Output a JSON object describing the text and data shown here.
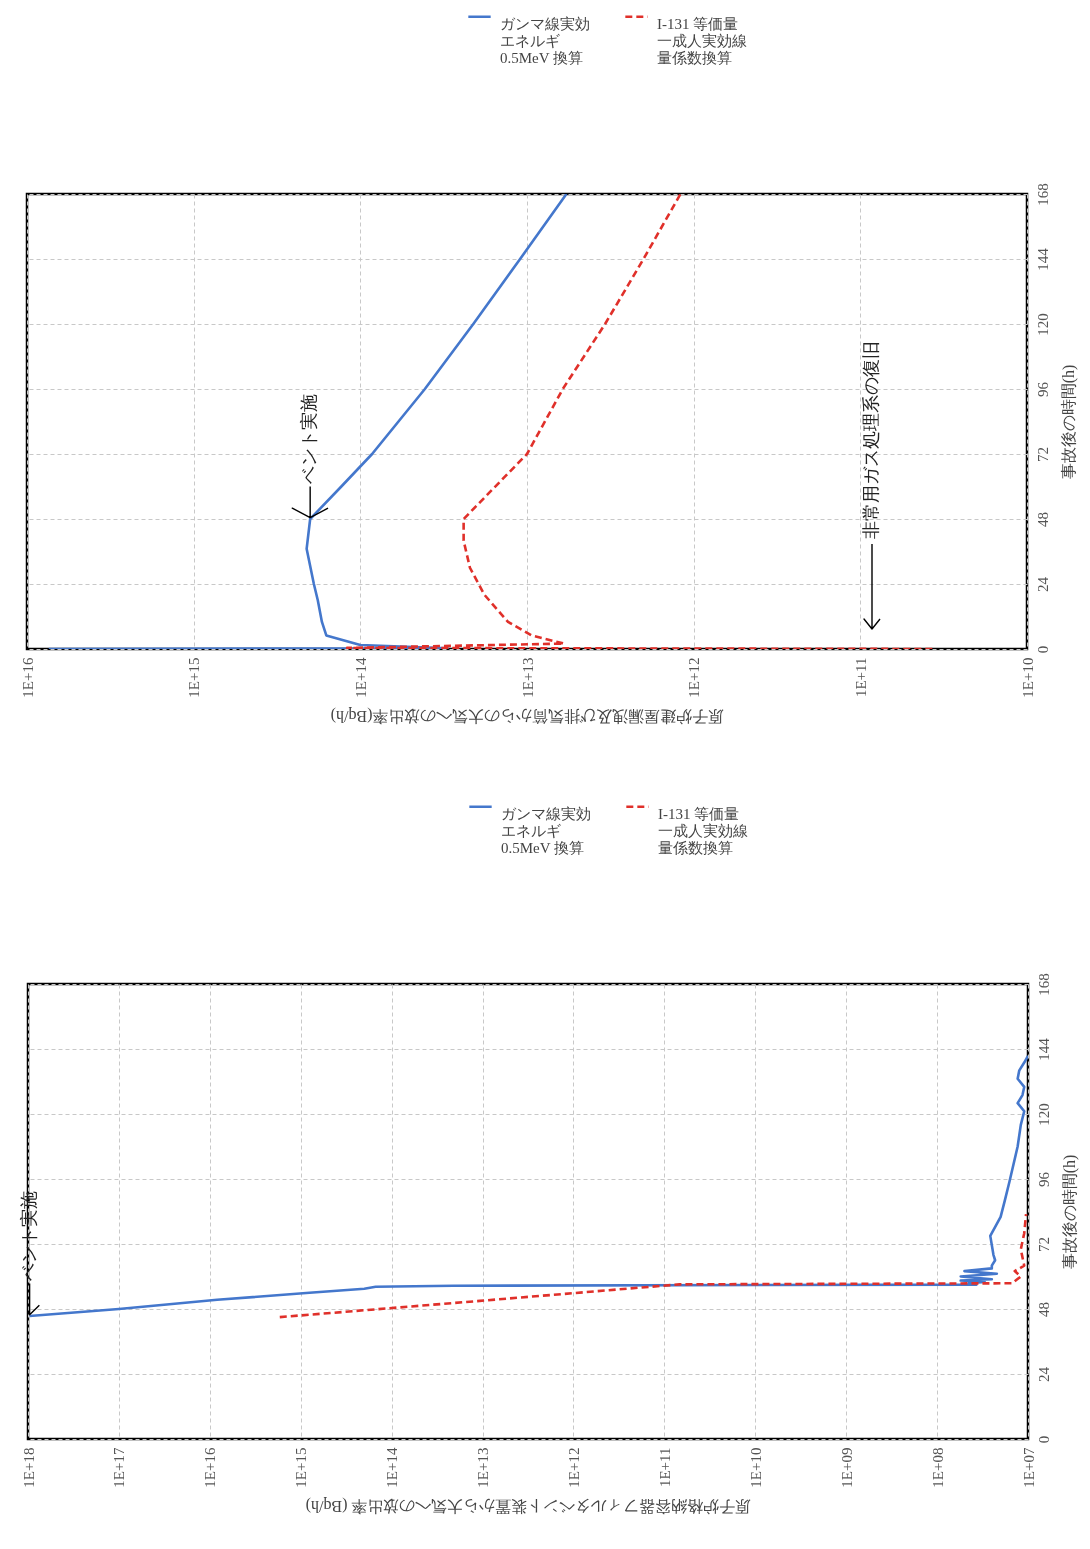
{
  "chart_data": [
    {
      "type": "line",
      "xlabel": "原子炉建屋漏洩及び排気筒からの大気への放出率(Bq/h)",
      "ylabel": "事故後の時間(h)",
      "ylim": [
        0,
        168
      ],
      "yticks": [
        0,
        24,
        48,
        72,
        96,
        120,
        144,
        168
      ],
      "xlim": [
        1e+16,
        10000000000.0
      ],
      "log": "x",
      "grid": true,
      "legend": "top",
      "xticks": [
        {
          "value": 1e+16,
          "label": "1E+16"
        },
        {
          "value": 1000000000000000.0,
          "label": "1E+15"
        },
        {
          "value": 100000000000000.0,
          "label": "1E+14"
        },
        {
          "value": 10000000000000.0,
          "label": "1E+13"
        },
        {
          "value": 1000000000000.0,
          "label": "1E+12"
        },
        {
          "value": 100000000000.0,
          "label": "1E+11"
        },
        {
          "value": 10000000000.0,
          "label": "1E+10"
        }
      ],
      "annotations": [
        {
          "text": "ベント実施",
          "x": 200000000000000.0,
          "y": 48
        },
        "非常用ガス処理系の復旧"
      ],
      "series": [
        {
          "name": "ガンマ線実効エネルギ0.5MeV 換算",
          "color": "#4477cc",
          "line_style": "solid",
          "x": [
            7400000000000000.0,
            30000000000000.0,
            100000000000000.0,
            160000000000000.0,
            170000000000000.0,
            180000000000000.0,
            190000000000000.0,
            210000000000000.0,
            200000000000000.0,
            130000000000000.0,
            85000000000000.0,
            41000000000000.0,
            21000000000000.0,
            11000000000000.0,
            5800000000000.0
          ],
          "values": [
            0,
            0.3,
            1.5,
            5,
            10,
            18,
            24,
            37,
            48,
            60,
            72,
            96,
            120,
            144,
            168
          ]
        },
        {
          "name": "I-131 等価量一成人実効線量係数換算",
          "color": "#e0302a",
          "line_style": "dashed",
          "x": [
            37000000000.0,
            120000000000000.0,
            6000000000000.0,
            9400000000000.0,
            13000000000000.0,
            18000000000000.0,
            22000000000000.0,
            24000000000000.0,
            24000000000000.0,
            10000000000000.0,
            6100000000000.0,
            3400000000000.0,
            2000000000000.0,
            1200000000000.0
          ],
          "values": [
            0,
            0.4,
            2,
            5,
            10,
            20,
            30,
            40,
            48,
            72,
            96,
            120,
            144,
            168
          ]
        }
      ]
    },
    {
      "type": "line",
      "xlabel": "原子炉格納容器フィルタベント装置から大気への放出率 (Bq/h)",
      "ylabel": "事故後の時間(h)",
      "ylim": [
        0,
        168
      ],
      "yticks": [
        0,
        24,
        48,
        72,
        96,
        120,
        144,
        168
      ],
      "xlim": [
        1e+18,
        10000000.0
      ],
      "log": "x",
      "grid": true,
      "legend": "top",
      "xticks": [
        {
          "value": 1e+18,
          "label": "1E+18"
        },
        {
          "value": 1e+17,
          "label": "1E+17"
        },
        {
          "value": 1e+16,
          "label": "1E+16"
        },
        {
          "value": 1000000000000000.0,
          "label": "1E+15"
        },
        {
          "value": 100000000000000.0,
          "label": "1E+14"
        },
        {
          "value": 10000000000000.0,
          "label": "1E+13"
        },
        {
          "value": 1000000000000.0,
          "label": "1E+12"
        },
        {
          "value": 100000000000.0,
          "label": "1E+11"
        },
        {
          "value": 10000000000.0,
          "label": "1E+10"
        },
        {
          "value": 1000000000.0,
          "label": "1E+09"
        },
        {
          "value": 100000000.0,
          "label": "1E+08"
        },
        {
          "value": 10000000.0,
          "label": "1E+07"
        }
      ],
      "annotations": [
        {
          "text": "ベント実施",
          "x": 9.6e+17,
          "y": 45.4
        }
      ],
      "series": [
        {
          "name": "ガンマ線実効エネルギ0.5MeV 換算",
          "color": "#4477cc",
          "line_style": "solid",
          "x": [
            9.6e+17,
            1e+17,
            8300000000000000.0,
            800000000000000.0,
            200000000000000.0,
            150000000000000.0,
            21000000000000.0,
            37000000.0,
            45000000.0,
            30000000.0,
            55000000.0,
            25000000.0,
            55000000.0,
            22000000.0,
            50000000.0,
            25000000.0,
            25000000.0,
            23000000.0,
            24000000.0,
            26000000.0,
            20000000.0,
            18000000.0,
            16000000.0,
            13000000.0,
            12000000.0,
            11000000.0,
            13000000.0,
            11500000.0,
            11000000.0,
            13000000.0,
            12500000.0,
            11000000.0,
            10000000.0
          ],
          "values": [
            45.4,
            48,
            51.4,
            54,
            55.5,
            56.2,
            56.6,
            57,
            57.5,
            58,
            58.5,
            59,
            60,
            61,
            62,
            63,
            64,
            66,
            68,
            75,
            82,
            88,
            95,
            108,
            116,
            121,
            124,
            127,
            130,
            133,
            136,
            139,
            141.5
          ]
        },
        {
          "name": "I-131 等価量一成人実効線量係数換算",
          "color": "#e0302a",
          "line_style": "dashed",
          "x": [
            1700000000000000.0,
            10700000000000.0,
            68000000000.0,
            15000000.0,
            12000000.0,
            14000000.0,
            11000000.0,
            12000000.0,
            11000000.0,
            10500000.0
          ],
          "values": [
            45,
            51,
            57.1,
            57.5,
            60,
            62,
            64,
            70,
            76,
            83
          ]
        }
      ]
    }
  ]
}
